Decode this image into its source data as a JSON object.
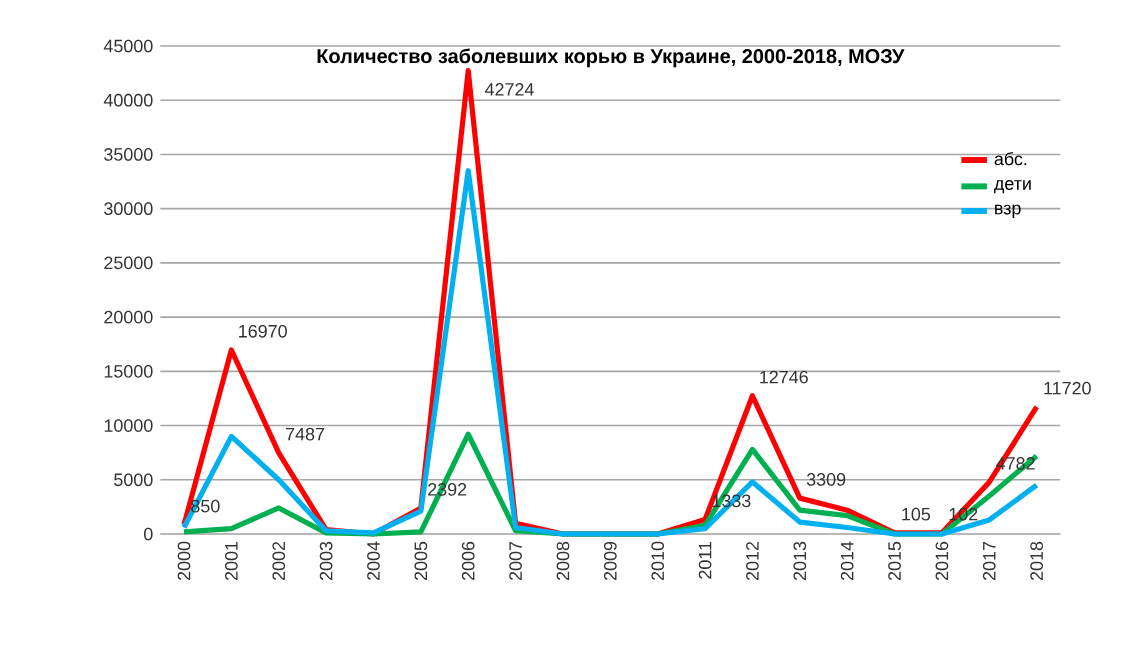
{
  "chart_data": {
    "type": "line",
    "title": "Количество заболевших корью в Украине, 2000-2018, МОЗУ",
    "categories": [
      "2000",
      "2001",
      "2002",
      "2003",
      "2004",
      "2005",
      "2006",
      "2007",
      "2008",
      "2009",
      "2010",
      "2011",
      "2012",
      "2013",
      "2014",
      "2015",
      "2016",
      "2017",
      "2018"
    ],
    "series": [
      {
        "name": "абс.",
        "color": "#ff0000",
        "values": [
          850,
          16970,
          7487,
          400,
          0,
          2392,
          42724,
          1000,
          0,
          0,
          0,
          1333,
          12746,
          3309,
          2200,
          105,
          102,
          4782,
          11720
        ],
        "value_labels": [
          "850",
          "16970",
          "7487",
          null,
          null,
          "2392",
          "42724",
          null,
          null,
          null,
          null,
          "1333",
          "12746",
          "3309",
          null,
          "105",
          "102",
          "4782",
          "11720"
        ]
      },
      {
        "name": "дети",
        "color": "#00b050",
        "values": [
          200,
          500,
          2400,
          100,
          0,
          200,
          9200,
          300,
          0,
          0,
          0,
          800,
          7800,
          2200,
          1700,
          0,
          0,
          3500,
          7200
        ]
      },
      {
        "name": "взр",
        "color": "#00b0f0",
        "values": [
          600,
          9000,
          5000,
          300,
          100,
          2100,
          33500,
          600,
          0,
          0,
          0,
          500,
          4800,
          1100,
          600,
          0,
          0,
          1300,
          4500
        ]
      }
    ],
    "ylim": [
      0,
      45000
    ],
    "yticks": [
      0,
      5000,
      10000,
      15000,
      20000,
      25000,
      30000,
      35000,
      40000,
      45000
    ],
    "grid": "y",
    "legend": "top right",
    "marker": "none",
    "line_style": "solid"
  }
}
